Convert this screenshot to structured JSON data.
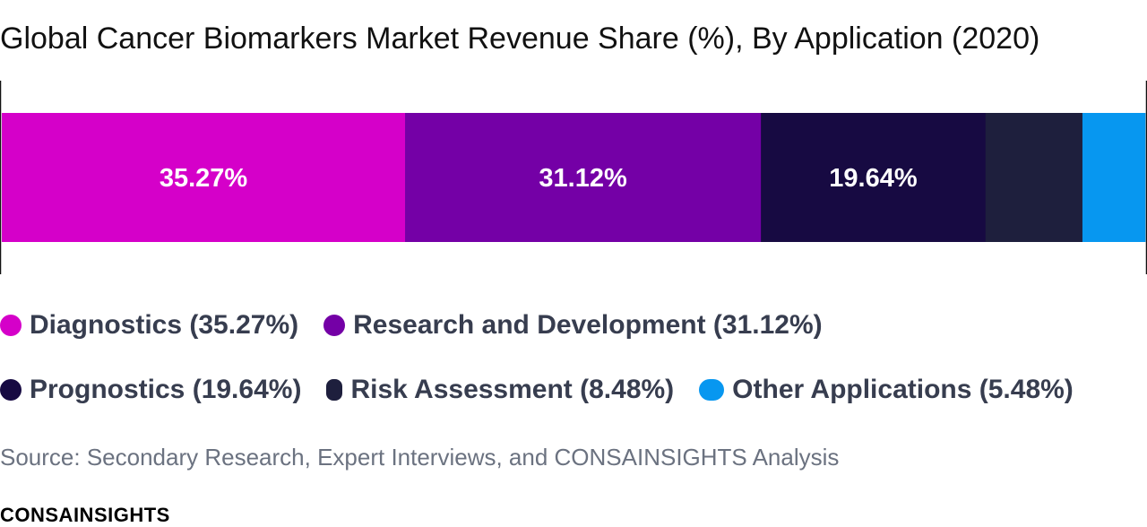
{
  "chart_data": {
    "type": "bar",
    "orientation": "horizontal-stacked",
    "title": "Global Cancer Biomarkers Market Revenue Share (%), By Application (2020)",
    "unit": "%",
    "series": [
      {
        "name": "Diagnostics",
        "value": 35.27,
        "value_label": "35.27%",
        "legend_label": "Diagnostics (35.27%)",
        "color": "#d500c9"
      },
      {
        "name": "Research and Development",
        "value": 31.12,
        "value_label": "31.12%",
        "legend_label": "Research and Development (31.12%)",
        "color": "#7400a6"
      },
      {
        "name": "Prognostics",
        "value": 19.64,
        "value_label": "19.64%",
        "legend_label": "Prognostics (19.64%)",
        "color": "#170a42"
      },
      {
        "name": "Risk Assessment",
        "value": 8.48,
        "value_label": "",
        "legend_label": "Risk Assessment (8.48%)",
        "color": "#1e1f3d"
      },
      {
        "name": "Other Applications",
        "value": 5.48,
        "value_label": "",
        "legend_label": "Other Applications (5.48%)",
        "color": "#0797f0"
      }
    ],
    "xlim": [
      0,
      100
    ],
    "grid": false,
    "legend_position": "bottom"
  },
  "source": "Source: Secondary Research, Expert Interviews, and CONSAINSIGHTS Analysis",
  "brand": "CONSAINSIGHTS"
}
